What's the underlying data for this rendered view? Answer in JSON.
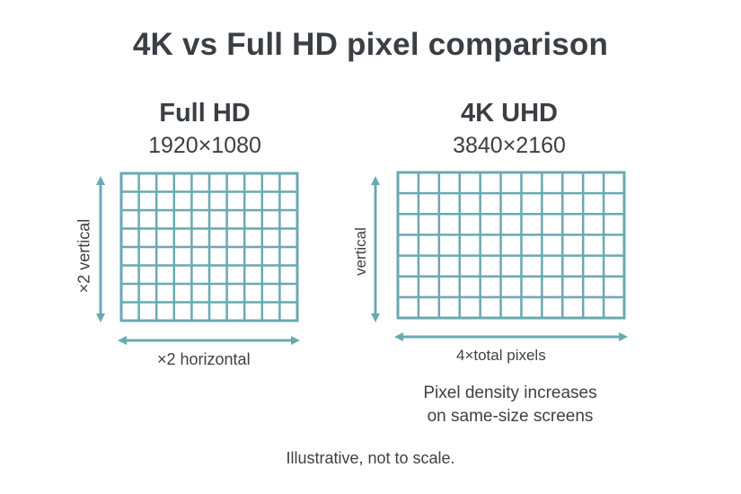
{
  "title": "4K vs Full HD pixel comparison",
  "panels": [
    {
      "name": "Full HD",
      "resolution": "1920×1080",
      "vertical_label": "×2 vertical",
      "horizontal_label": "×2 horizontal",
      "grid": {
        "columns": 10,
        "rows": 8
      }
    },
    {
      "name": "4K UHD",
      "resolution": "3840×2160",
      "vertical_label": "vertical",
      "horizontal_label": "4×total pixels",
      "grid": {
        "columns": 11,
        "rows": 7
      }
    }
  ],
  "note": {
    "line1": "Pixel density increases",
    "line2": "on same-size screens"
  },
  "footer": "Illustrative, not to scale.",
  "colors": {
    "grid": "#6aa9b2",
    "text": "#3a3f45"
  }
}
